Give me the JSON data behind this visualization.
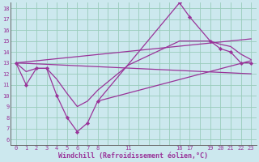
{
  "xlabel": "Windchill (Refroidissement éolien,°C)",
  "bg_color": "#cce8ee",
  "line_color": "#993399",
  "grid_color": "#99ccbb",
  "xtick_labels": [
    "0",
    "1",
    "2",
    "3",
    "4",
    "5",
    "6",
    "7",
    "8",
    "",
    "",
    "11",
    "",
    "",
    "",
    "",
    "16",
    "17",
    "",
    "19",
    "20",
    "21",
    "22",
    "23"
  ],
  "ytick_labels": [
    "6",
    "7",
    "8",
    "9",
    "10",
    "11",
    "12",
    "13",
    "14",
    "15",
    "16",
    "17",
    "18"
  ],
  "ytick_vals": [
    6,
    7,
    8,
    9,
    10,
    11,
    12,
    13,
    14,
    15,
    16,
    17,
    18
  ],
  "xlim": [
    -0.5,
    23.5
  ],
  "ylim": [
    5.5,
    18.5
  ],
  "curve_main": {
    "x": [
      0,
      1,
      2,
      3,
      4,
      5,
      6,
      7,
      8,
      16,
      17,
      19,
      20,
      21,
      22,
      23
    ],
    "y": [
      13.0,
      11.0,
      12.5,
      12.5,
      10.0,
      8.0,
      6.7,
      7.5,
      9.5,
      18.5,
      17.2,
      15.0,
      14.3,
      14.0,
      13.0,
      13.0
    ]
  },
  "curve_second": {
    "x": [
      0,
      1,
      2,
      3,
      4,
      5,
      6,
      7,
      8,
      11,
      16,
      17,
      19,
      20,
      21,
      22,
      23
    ],
    "y": [
      13.0,
      12.2,
      12.5,
      12.5,
      11.5,
      10.2,
      9.0,
      9.5,
      10.5,
      12.8,
      15.0,
      15.0,
      15.0,
      14.7,
      14.5,
      13.8,
      13.3
    ]
  },
  "curve_upper": {
    "x": [
      0,
      23
    ],
    "y": [
      13.0,
      15.2
    ]
  },
  "curve_lower": {
    "x": [
      0,
      23
    ],
    "y": [
      13.0,
      12.0
    ]
  },
  "curve_mid": {
    "x": [
      8,
      23
    ],
    "y": [
      9.5,
      13.2
    ]
  }
}
